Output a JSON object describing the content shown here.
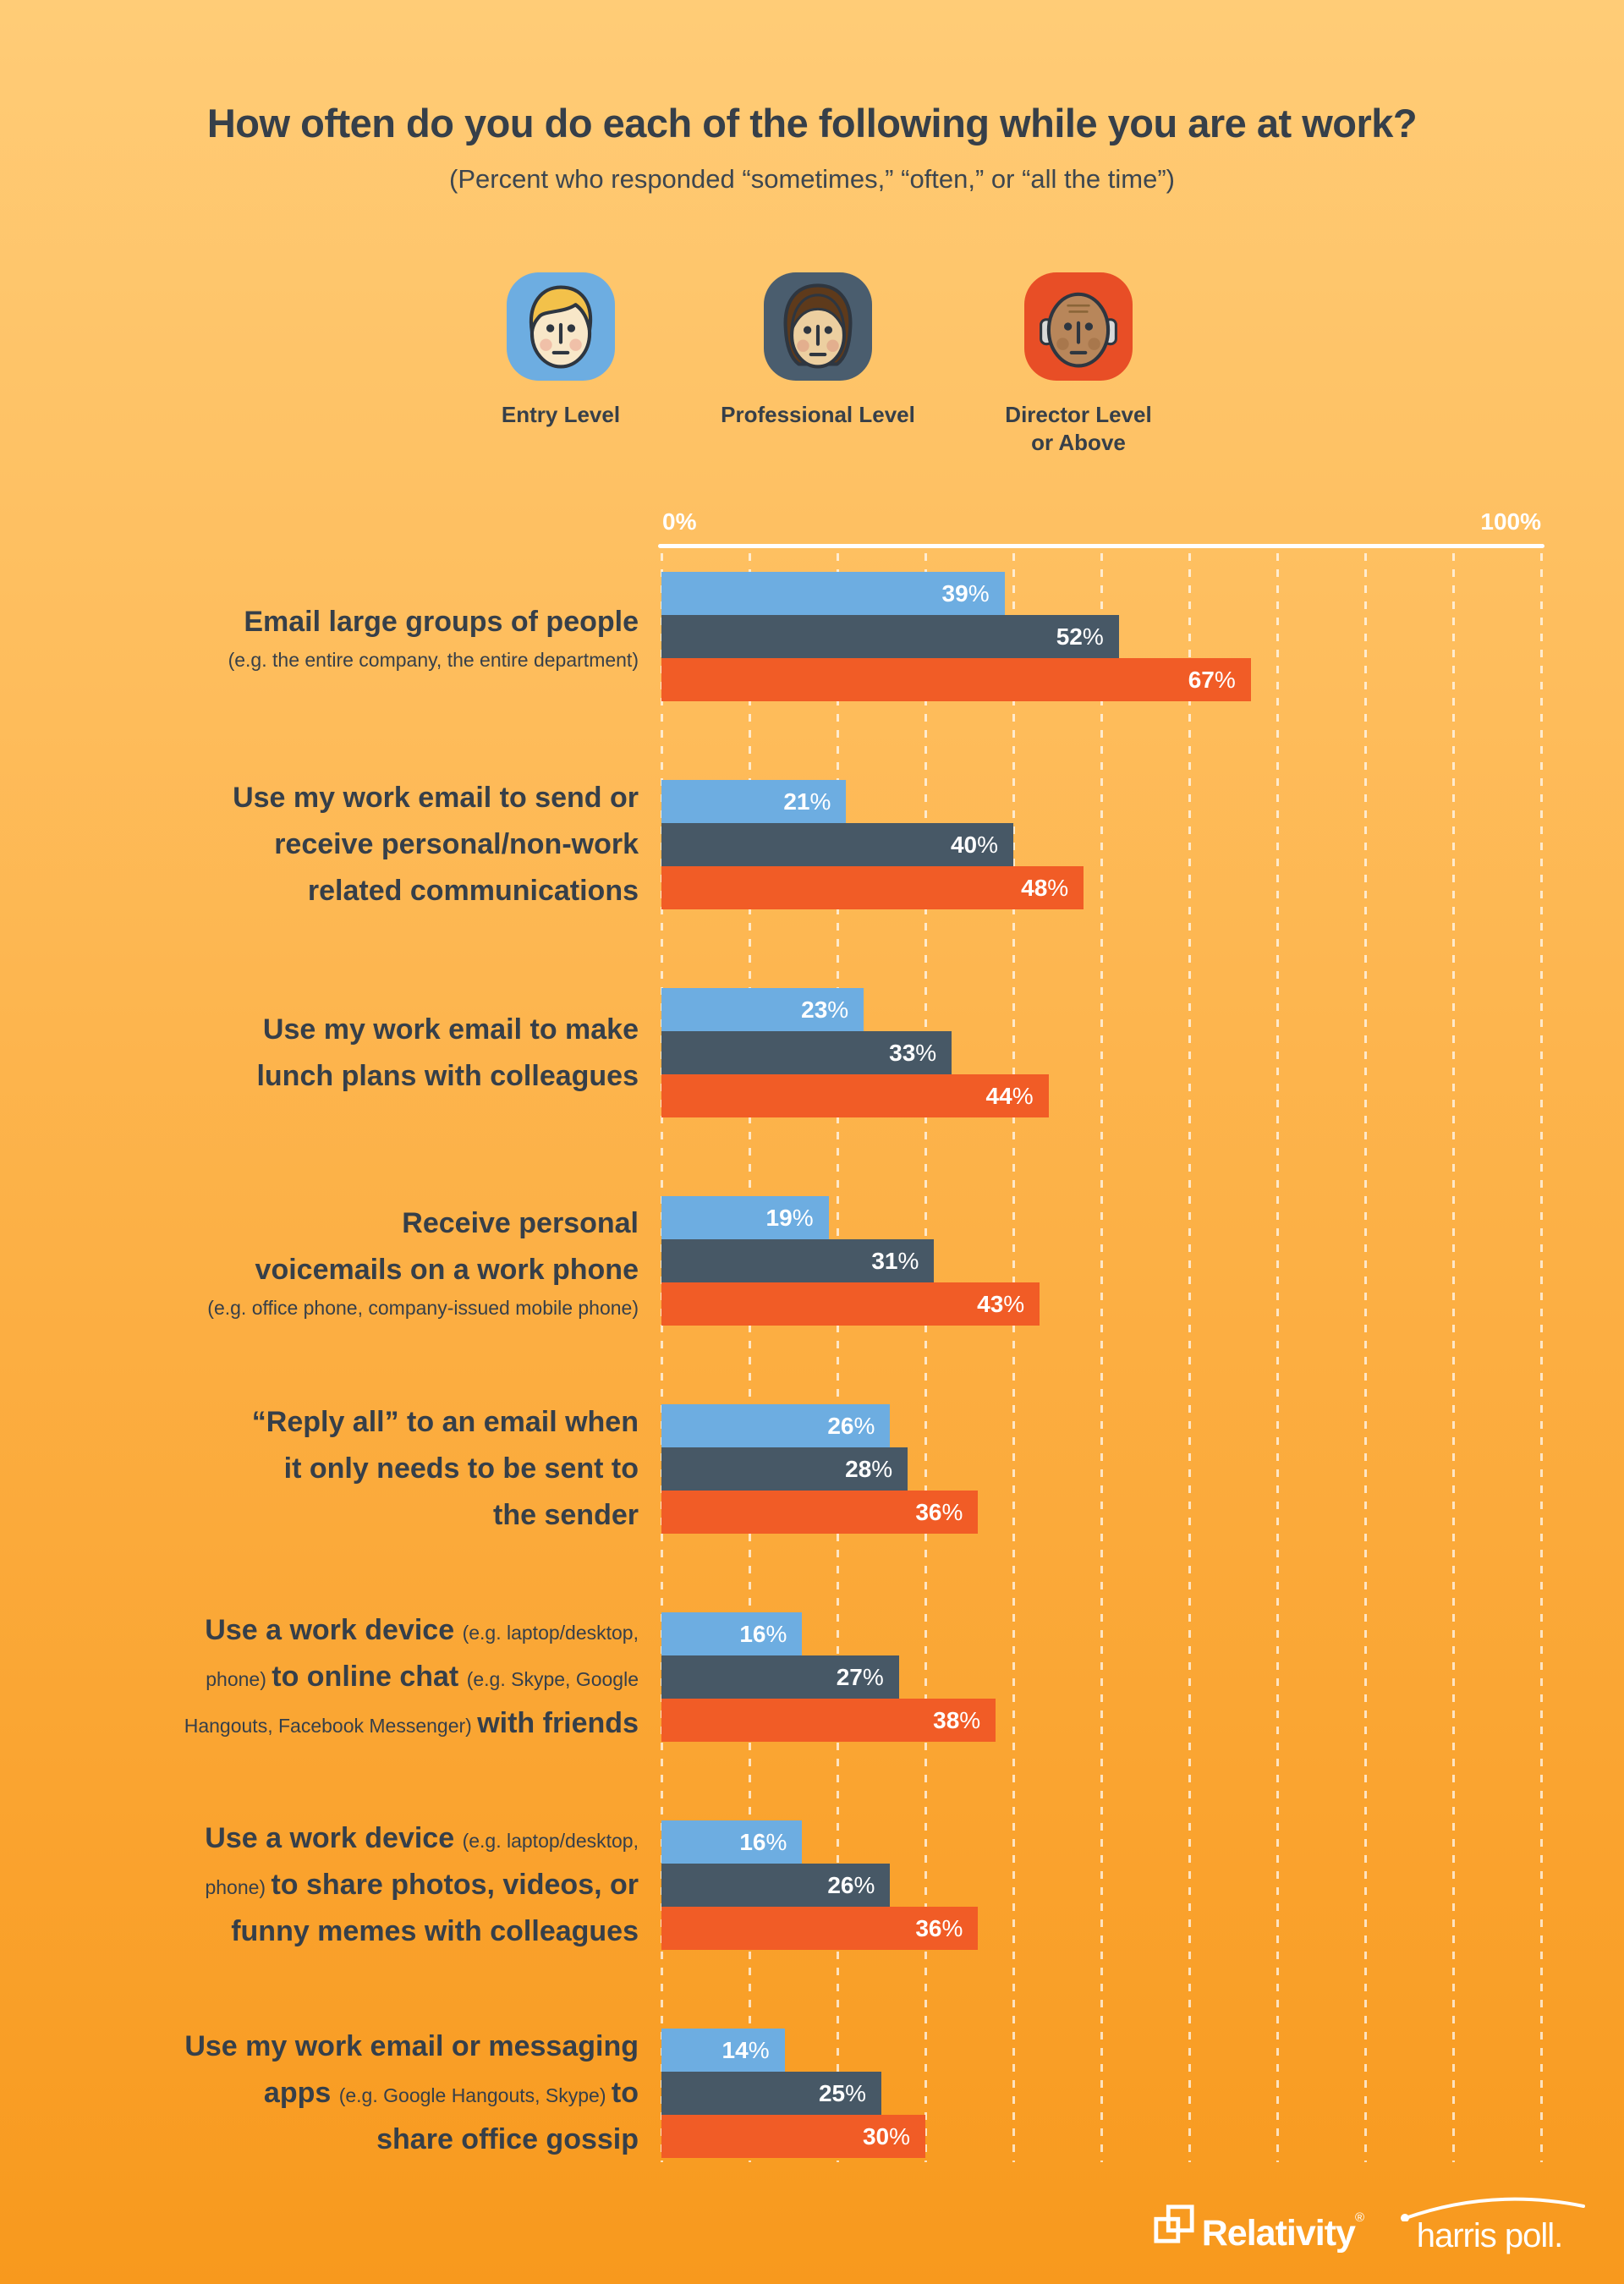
{
  "page": {
    "title": "How often do you do each of the following while you are at work?",
    "subtitle": "(Percent who responded “sometimes,” “often,” or “all the time”)",
    "background_top_color": "#ffcc77",
    "background_bottom_color": "#f8991d"
  },
  "legend": {
    "position": "top-center",
    "items": [
      {
        "label": "Entry Level",
        "color": "#6dade1",
        "icon": "entry-level-face-icon"
      },
      {
        "label": "Professional Level",
        "color": "#4a5d6e",
        "icon": "professional-level-face-icon"
      },
      {
        "label": "Director Level",
        "label2": "or Above",
        "color": "#e84e26",
        "icon": "director-level-face-icon"
      }
    ]
  },
  "chart_data": {
    "type": "bar",
    "orientation": "horizontal",
    "title": "How often do you do each of the following while you are at work?",
    "subtitle": "(Percent who responded “sometimes,” “often,” or “all the time”)",
    "xlim": [
      0,
      100
    ],
    "axis_labels": {
      "min": "0%",
      "max": "100%"
    },
    "gridlines": {
      "style": "dashed-white-vertical",
      "interval_percent": 10
    },
    "percent_suffix": "%",
    "legend_position": "top-center",
    "categories": [
      "Email large groups of people (e.g. the entire company, the entire department)",
      "Use my work email to send or receive personal/non-work related communications",
      "Use my work email to make lunch plans with colleagues",
      "Receive personal voicemails on a work phone (e.g. office phone, company-issued mobile phone)",
      "“Reply all” to an email when it only needs to be sent to the sender",
      "Use a work device (e.g. laptop/desktop, phone) to online chat (e.g. Skype, Google Hangouts, Facebook Messenger) with friends",
      "Use a work device (e.g. laptop/desktop, phone) to share photos, videos, or funny memes with colleagues",
      "Use my work email or messaging apps (e.g. Google Hangouts, Skype) to share office gossip"
    ],
    "series": [
      {
        "name": "Entry Level",
        "color": "#6dade1",
        "values": [
          39,
          21,
          23,
          19,
          26,
          16,
          16,
          14
        ]
      },
      {
        "name": "Professional Level",
        "color": "#475866",
        "values": [
          52,
          40,
          33,
          31,
          28,
          27,
          26,
          25
        ]
      },
      {
        "name": "Director Level or Above",
        "color": "#f15c26",
        "values": [
          67,
          48,
          44,
          43,
          36,
          38,
          36,
          30
        ]
      }
    ]
  },
  "row_labels": [
    {
      "lines": [
        [
          {
            "t": "Email large groups of people",
            "s": "bold"
          }
        ],
        [
          {
            "t": "(e.g. the entire company, the entire department)",
            "s": "small"
          }
        ]
      ]
    },
    {
      "lines": [
        [
          {
            "t": "Use my work email to send or",
            "s": "bold"
          }
        ],
        [
          {
            "t": "receive personal/non-work",
            "s": "bold"
          }
        ],
        [
          {
            "t": "related communications",
            "s": "bold"
          }
        ]
      ]
    },
    {
      "lines": [
        [
          {
            "t": "Use my work email to make",
            "s": "bold"
          }
        ],
        [
          {
            "t": "lunch plans with colleagues",
            "s": "bold"
          }
        ]
      ]
    },
    {
      "lines": [
        [
          {
            "t": "Receive personal",
            "s": "bold"
          }
        ],
        [
          {
            "t": "voicemails on a work phone",
            "s": "bold"
          }
        ],
        [
          {
            "t": "(e.g. office phone, company-issued mobile phone)",
            "s": "small"
          }
        ]
      ]
    },
    {
      "lines": [
        [
          {
            "t": "“Reply all” to an email when",
            "s": "bold"
          }
        ],
        [
          {
            "t": "it only needs to be sent to",
            "s": "bold"
          }
        ],
        [
          {
            "t": "the sender",
            "s": "bold"
          }
        ]
      ]
    },
    {
      "lines": [
        [
          {
            "t": "Use a work device ",
            "s": "bold"
          },
          {
            "t": "(e.g. laptop/desktop,",
            "s": "small"
          }
        ],
        [
          {
            "t": "phone) ",
            "s": "small"
          },
          {
            "t": "to online chat ",
            "s": "bold"
          },
          {
            "t": "(e.g. Skype, Google",
            "s": "small"
          }
        ],
        [
          {
            "t": "Hangouts, Facebook Messenger) ",
            "s": "small"
          },
          {
            "t": "with friends",
            "s": "bold"
          }
        ]
      ]
    },
    {
      "lines": [
        [
          {
            "t": "Use a work device ",
            "s": "bold"
          },
          {
            "t": "(e.g. laptop/desktop,",
            "s": "small"
          }
        ],
        [
          {
            "t": "phone) ",
            "s": "small"
          },
          {
            "t": "to share photos, videos, or",
            "s": "bold"
          }
        ],
        [
          {
            "t": "funny memes with colleagues",
            "s": "bold"
          }
        ]
      ]
    },
    {
      "lines": [
        [
          {
            "t": "Use my work email or messaging",
            "s": "bold"
          }
        ],
        [
          {
            "t": "apps ",
            "s": "bold"
          },
          {
            "t": "(e.g. Google Hangouts, Skype) ",
            "s": "small"
          },
          {
            "t": "to",
            "s": "bold"
          }
        ],
        [
          {
            "t": "share office gossip",
            "s": "bold"
          }
        ]
      ]
    }
  ],
  "footer": {
    "brand_left": "Relativity",
    "brand_left_mark": "®",
    "brand_right": "harris poll."
  }
}
